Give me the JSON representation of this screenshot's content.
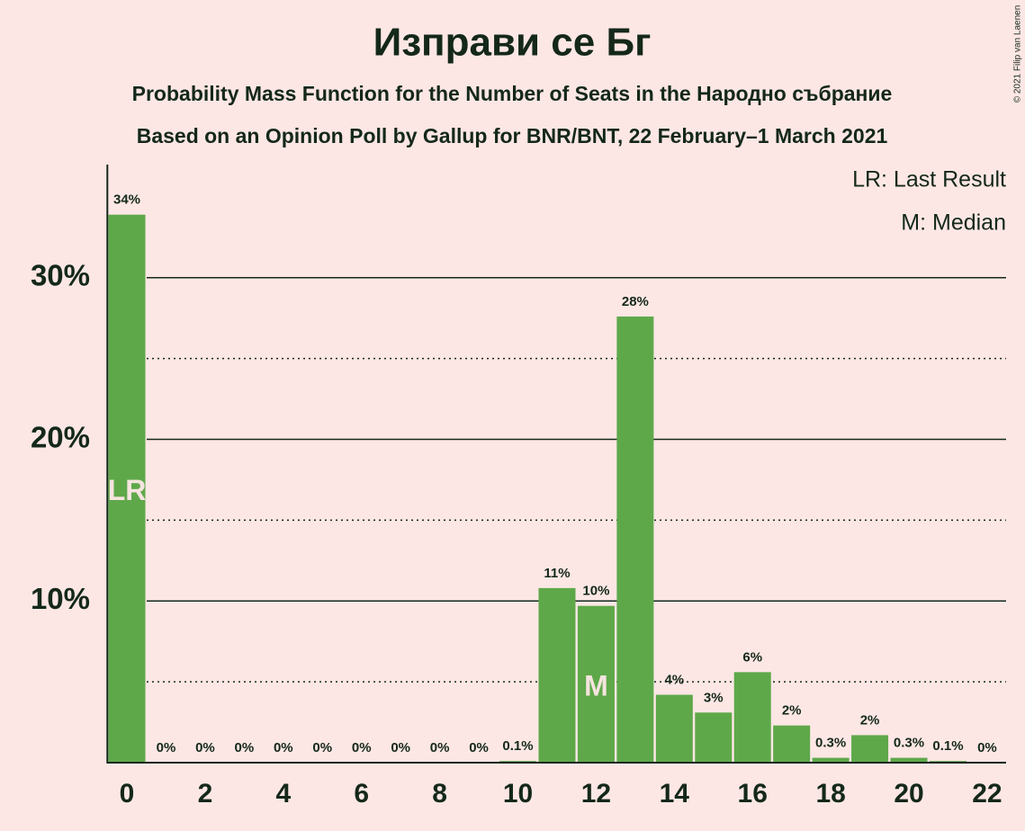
{
  "chart_data": {
    "type": "bar",
    "title": "Изправи се Бг",
    "subtitles": [
      "Probability Mass Function for the Number of Seats in the Народно събрание",
      "Based on an Opinion Poll by Gallup for BNR/BNT, 22 February–1 March 2021"
    ],
    "categories": [
      0,
      null,
      2,
      null,
      4,
      null,
      6,
      null,
      8,
      null,
      10,
      null,
      12,
      null,
      14,
      null,
      16,
      null,
      18,
      null,
      20,
      null,
      22
    ],
    "values": [
      33.9,
      0,
      0,
      0,
      0,
      0,
      0,
      0,
      0,
      0,
      0.1,
      10.8,
      9.7,
      27.6,
      4.2,
      3.1,
      5.6,
      2.3,
      0.3,
      1.7,
      0.3,
      0.1,
      0
    ],
    "value_labels": [
      "34%",
      "0%",
      "0%",
      "0%",
      "0%",
      "0%",
      "0%",
      "0%",
      "0%",
      "0%",
      "0.1%",
      "11%",
      "10%",
      "28%",
      "4%",
      "3%",
      "6%",
      "2%",
      "0.3%",
      "2%",
      "0.3%",
      "0.1%",
      "0%"
    ],
    "color": "#5ea84a",
    "ylim": [
      0,
      37
    ],
    "yticks": [
      {
        "value": 10,
        "label": "10%"
      },
      {
        "value": 20,
        "label": "20%"
      },
      {
        "value": 30,
        "label": "30%"
      }
    ],
    "minor_gridlines": [
      5,
      15,
      25
    ],
    "grid": true,
    "annotations": [
      {
        "label": "LR",
        "x": 0
      },
      {
        "label": "M",
        "x": 12
      }
    ],
    "legend": [
      "LR: Last Result",
      "M: Median"
    ],
    "credit": "© 2021 Filip van Laenen"
  }
}
